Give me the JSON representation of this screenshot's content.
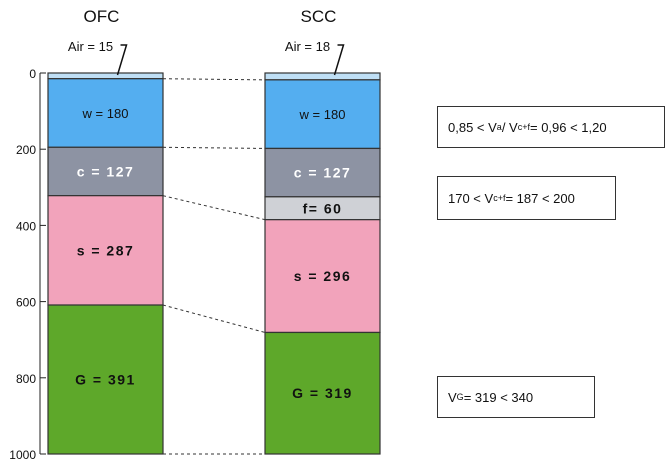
{
  "columns": [
    {
      "title": "OFC",
      "air_label": "Air = 15",
      "layers": [
        {
          "key": "air",
          "label": "",
          "value": 15,
          "color": "#bfdff5"
        },
        {
          "key": "w",
          "label": "w = 180",
          "value": 180,
          "color": "#54aef0"
        },
        {
          "key": "c",
          "label": "c = 127",
          "value": 127,
          "color": "#8d93a3"
        },
        {
          "key": "s",
          "label": "s = 287",
          "value": 287,
          "color": "#f2a3bb"
        },
        {
          "key": "G",
          "label": "G = 391",
          "value": 391,
          "color": "#5ea82a"
        }
      ]
    },
    {
      "title": "SCC",
      "air_label": "Air = 18",
      "layers": [
        {
          "key": "air",
          "label": "",
          "value": 18,
          "color": "#bfdff5"
        },
        {
          "key": "w",
          "label": "w = 180",
          "value": 180,
          "color": "#54aef0"
        },
        {
          "key": "c",
          "label": "c = 127",
          "value": 127,
          "color": "#8d93a3"
        },
        {
          "key": "f",
          "label": "f= 60",
          "value": 60,
          "color": "#cfd1d6"
        },
        {
          "key": "s",
          "label": "s = 296",
          "value": 296,
          "color": "#f2a3bb"
        },
        {
          "key": "G",
          "label": "G = 319",
          "value": 319,
          "color": "#5ea82a"
        }
      ]
    }
  ],
  "axis": {
    "ticks": [
      "0",
      "200",
      "400",
      "600",
      "800",
      "1000"
    ],
    "min": 0,
    "max": 1000
  },
  "notes": [
    {
      "pre": "0,85 < V",
      "sub1": "a",
      "mid": " / V",
      "sub2": "c+f",
      "post": " = 0,96 < 1,20"
    },
    {
      "pre": "170 < V",
      "sub1": "c+f",
      "mid": " = 187 < 200",
      "sub2": "",
      "post": ""
    },
    {
      "pre": "V",
      "sub1": "G",
      "mid": " = 319 < 340",
      "sub2": "",
      "post": ""
    }
  ]
}
